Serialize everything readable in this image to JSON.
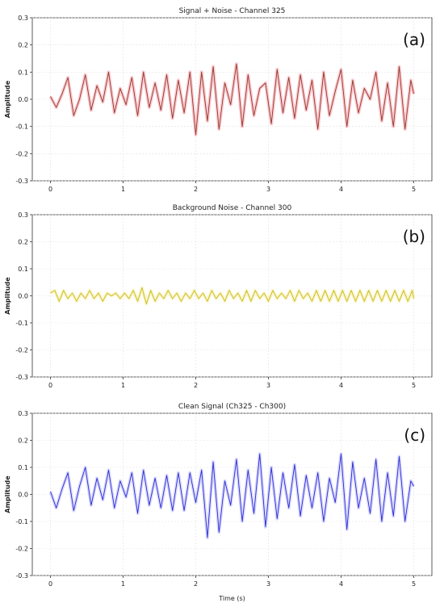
{
  "chart_data": [
    {
      "type": "line",
      "title": "Signal + Noise - Channel 325",
      "panel_label": "(a)",
      "ylabel": "Amplitude",
      "xlabel": "",
      "xlim": [
        -0.25,
        5.25
      ],
      "ylim": [
        -0.3,
        0.3
      ],
      "xticks": [
        "0",
        "1",
        "2",
        "3",
        "4",
        "5"
      ],
      "yticks": [
        "0.3",
        "0.2",
        "0.1",
        "0.0",
        "-0.1",
        "-0.2",
        "-0.3"
      ],
      "grid": true,
      "color": "#8b3a2a",
      "glow": "#ff9aa8",
      "series": [
        {
          "x": [
            0,
            0.08,
            0.16,
            0.24,
            0.32,
            0.4,
            0.48,
            0.56,
            0.64,
            0.72,
            0.8,
            0.88,
            0.96,
            1.04,
            1.12,
            1.2,
            1.28,
            1.36,
            1.44,
            1.52,
            1.6,
            1.68,
            1.76,
            1.84,
            1.92,
            2.0,
            2.08,
            2.16,
            2.24,
            2.32,
            2.4,
            2.48,
            2.56,
            2.64,
            2.72,
            2.8,
            2.88,
            2.96,
            3.04,
            3.12,
            3.2,
            3.28,
            3.36,
            3.44,
            3.52,
            3.6,
            3.68,
            3.76,
            3.84,
            3.92,
            4.0,
            4.08,
            4.16,
            4.24,
            4.32,
            4.4,
            4.48,
            4.56,
            4.64,
            4.72,
            4.8,
            4.88,
            4.96,
            5.0
          ],
          "values": [
            0.01,
            -0.03,
            0.02,
            0.08,
            -0.06,
            0.0,
            0.09,
            -0.04,
            0.05,
            -0.01,
            0.1,
            -0.05,
            0.04,
            -0.02,
            0.08,
            -0.06,
            0.1,
            -0.03,
            0.06,
            -0.04,
            0.09,
            -0.07,
            0.07,
            -0.05,
            0.1,
            -0.13,
            0.1,
            -0.08,
            0.12,
            -0.11,
            0.06,
            -0.02,
            0.13,
            -0.1,
            0.09,
            -0.06,
            0.04,
            0.06,
            -0.09,
            0.11,
            -0.05,
            0.08,
            -0.07,
            0.09,
            -0.04,
            0.07,
            -0.11,
            0.1,
            -0.06,
            0.03,
            0.11,
            -0.1,
            0.07,
            -0.05,
            0.04,
            0.0,
            0.1,
            -0.08,
            0.06,
            -0.1,
            0.12,
            -0.11,
            0.07,
            0.02
          ]
        }
      ]
    },
    {
      "type": "line",
      "title": "Background Noise - Channel 300",
      "panel_label": "(b)",
      "ylabel": "Amplitude",
      "xlabel": "",
      "xlim": [
        -0.25,
        5.25
      ],
      "ylim": [
        -0.3,
        0.3
      ],
      "xticks": [
        "0",
        "1",
        "2",
        "3",
        "4",
        "5"
      ],
      "yticks": [
        "0.3",
        "0.2",
        "0.1",
        "0.0",
        "-0.1",
        "-0.2",
        "-0.3"
      ],
      "grid": true,
      "color": "#c9b820",
      "glow": "#f7ef9a",
      "series": [
        {
          "x": [
            0,
            0.06,
            0.12,
            0.18,
            0.24,
            0.3,
            0.36,
            0.42,
            0.48,
            0.54,
            0.6,
            0.66,
            0.72,
            0.78,
            0.84,
            0.9,
            0.96,
            1.02,
            1.08,
            1.14,
            1.2,
            1.26,
            1.32,
            1.38,
            1.44,
            1.5,
            1.56,
            1.62,
            1.68,
            1.74,
            1.8,
            1.86,
            1.92,
            1.98,
            2.04,
            2.1,
            2.16,
            2.22,
            2.28,
            2.34,
            2.4,
            2.46,
            2.52,
            2.58,
            2.64,
            2.7,
            2.76,
            2.82,
            2.88,
            2.94,
            3.0,
            3.06,
            3.12,
            3.18,
            3.24,
            3.3,
            3.36,
            3.42,
            3.48,
            3.54,
            3.6,
            3.66,
            3.72,
            3.78,
            3.84,
            3.9,
            3.96,
            4.02,
            4.08,
            4.14,
            4.2,
            4.26,
            4.32,
            4.38,
            4.44,
            4.5,
            4.56,
            4.62,
            4.68,
            4.74,
            4.8,
            4.86,
            4.92,
            4.98,
            5.0
          ],
          "values": [
            0.01,
            0.02,
            -0.02,
            0.02,
            -0.01,
            0.01,
            -0.02,
            0.01,
            -0.01,
            0.02,
            -0.01,
            0.01,
            -0.02,
            0.01,
            0.0,
            0.01,
            -0.01,
            0.01,
            -0.01,
            0.02,
            -0.02,
            0.03,
            -0.03,
            0.02,
            -0.02,
            0.01,
            -0.01,
            0.02,
            -0.01,
            0.01,
            -0.02,
            0.01,
            -0.01,
            0.02,
            -0.01,
            0.01,
            -0.02,
            0.02,
            -0.01,
            0.01,
            -0.02,
            0.02,
            -0.01,
            0.01,
            -0.02,
            0.02,
            -0.02,
            0.02,
            -0.01,
            0.01,
            -0.02,
            0.02,
            -0.01,
            0.01,
            -0.01,
            0.02,
            -0.02,
            0.02,
            -0.01,
            0.01,
            -0.02,
            0.02,
            -0.02,
            0.02,
            -0.02,
            0.02,
            -0.02,
            0.02,
            -0.02,
            0.02,
            -0.02,
            0.02,
            -0.02,
            0.02,
            -0.02,
            0.02,
            -0.02,
            0.02,
            -0.02,
            0.02,
            -0.02,
            0.02,
            -0.02,
            0.02,
            -0.01
          ]
        }
      ]
    },
    {
      "type": "line",
      "title": "Clean Signal (Ch325 - Ch300)",
      "panel_label": "(c)",
      "ylabel": "Amplitude",
      "xlabel": "Time (s)",
      "xlim": [
        -0.25,
        5.25
      ],
      "ylim": [
        -0.3,
        0.3
      ],
      "xticks": [
        "0",
        "1",
        "2",
        "3",
        "4",
        "5"
      ],
      "yticks": [
        "0.3",
        "0.2",
        "0.1",
        "0.0",
        "-0.1",
        "-0.2",
        "-0.3"
      ],
      "grid": true,
      "color": "#2b2bd0",
      "glow": "#b9b9ff",
      "series": [
        {
          "x": [
            0,
            0.08,
            0.16,
            0.24,
            0.32,
            0.4,
            0.48,
            0.56,
            0.64,
            0.72,
            0.8,
            0.88,
            0.96,
            1.04,
            1.12,
            1.2,
            1.28,
            1.36,
            1.44,
            1.52,
            1.6,
            1.68,
            1.76,
            1.84,
            1.92,
            2.0,
            2.08,
            2.16,
            2.24,
            2.32,
            2.4,
            2.48,
            2.56,
            2.64,
            2.72,
            2.8,
            2.88,
            2.96,
            3.04,
            3.12,
            3.2,
            3.28,
            3.36,
            3.44,
            3.52,
            3.6,
            3.68,
            3.76,
            3.84,
            3.92,
            4.0,
            4.08,
            4.16,
            4.24,
            4.32,
            4.4,
            4.48,
            4.56,
            4.64,
            4.72,
            4.8,
            4.88,
            4.96,
            5.0
          ],
          "values": [
            0.01,
            -0.05,
            0.02,
            0.08,
            -0.06,
            0.03,
            0.1,
            -0.04,
            0.06,
            -0.02,
            0.09,
            -0.05,
            0.05,
            -0.01,
            0.08,
            -0.07,
            0.09,
            -0.04,
            0.06,
            -0.05,
            0.07,
            -0.06,
            0.08,
            -0.06,
            0.08,
            -0.03,
            0.09,
            -0.16,
            0.12,
            -0.14,
            0.05,
            -0.04,
            0.13,
            -0.1,
            0.09,
            -0.07,
            0.15,
            -0.12,
            0.1,
            -0.09,
            0.08,
            -0.05,
            0.11,
            -0.08,
            0.07,
            -0.05,
            0.08,
            -0.1,
            0.06,
            -0.03,
            0.15,
            -0.13,
            0.12,
            -0.05,
            0.06,
            -0.07,
            0.13,
            -0.1,
            0.08,
            -0.08,
            0.14,
            -0.1,
            0.05,
            0.03
          ]
        }
      ]
    }
  ]
}
